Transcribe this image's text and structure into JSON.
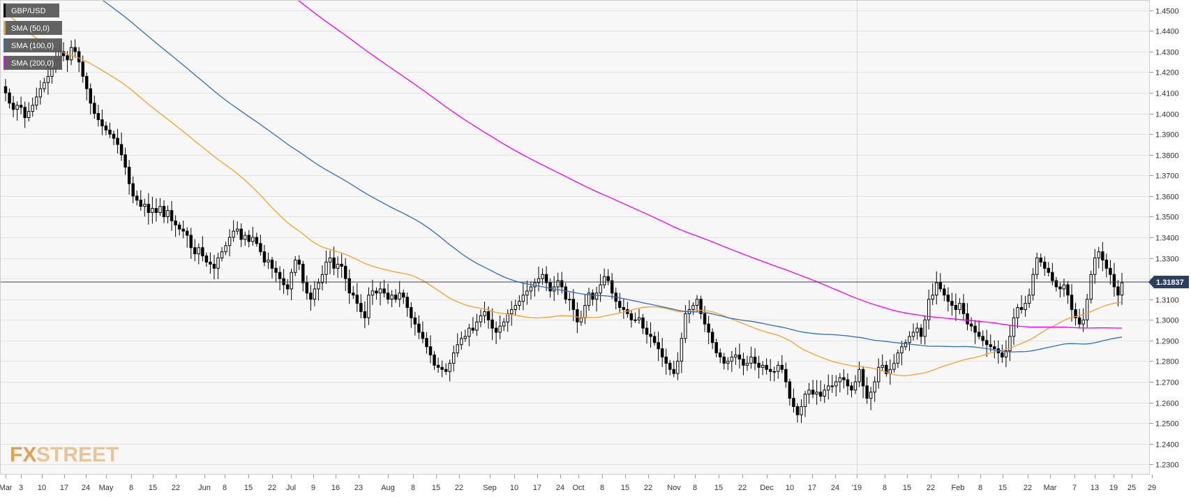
{
  "chart_data": {
    "type": "candlestick",
    "instrument": "GBP/USD",
    "ylim": [
      1.225,
      1.455
    ],
    "yticks": [
      "1.2300",
      "1.2400",
      "1.2500",
      "1.2600",
      "1.2700",
      "1.2800",
      "1.2900",
      "1.3000",
      "1.3100",
      "1.3200",
      "1.3300",
      "1.3400",
      "1.3500",
      "1.3600",
      "1.3700",
      "1.3800",
      "1.3900",
      "1.4000",
      "1.4100",
      "1.4200",
      "1.4300",
      "1.4400",
      "1.4500"
    ],
    "xticks": [
      "Mar",
      "3",
      "10",
      "17",
      "24",
      "May",
      "8",
      "15",
      "22",
      "Jun",
      "8",
      "15",
      "22",
      "Jul",
      "9",
      "16",
      "23",
      "Aug",
      "8",
      "15",
      "22",
      "Sep",
      "10",
      "17",
      "24",
      "Oct",
      "8",
      "15",
      "22",
      "Nov",
      "8",
      "15",
      "22",
      "Dec",
      "10",
      "17",
      "24",
      "'19",
      "8",
      "15",
      "22",
      "Feb",
      "8",
      "15",
      "22",
      "Mar",
      "7",
      "13",
      "19",
      "25",
      "29"
    ],
    "last_price": 1.31837,
    "last_price_label": "1.31837",
    "grid": true,
    "legend_position": "top-left",
    "legend": [
      {
        "label": "GBP/USD",
        "color": "#000000"
      },
      {
        "label": "SMA (50,0)",
        "color": "#f5a030"
      },
      {
        "label": "SMA (100,0)",
        "color": "#2f6eba"
      },
      {
        "label": "SMA (200,0)",
        "color": "#ee00ee"
      }
    ],
    "close_series": [
      1.41,
      1.405,
      1.402,
      1.404,
      1.403,
      1.398,
      1.401,
      1.404,
      1.408,
      1.412,
      1.415,
      1.418,
      1.422,
      1.426,
      1.43,
      1.428,
      1.426,
      1.432,
      1.43,
      1.425,
      1.418,
      1.412,
      1.405,
      1.4,
      1.397,
      1.394,
      1.392,
      1.39,
      1.388,
      1.385,
      1.38,
      1.374,
      1.366,
      1.36,
      1.358,
      1.355,
      1.356,
      1.352,
      1.354,
      1.352,
      1.355,
      1.35,
      1.353,
      1.348,
      1.346,
      1.344,
      1.343,
      1.341,
      1.335,
      1.332,
      1.335,
      1.331,
      1.328,
      1.327,
      1.325,
      1.33,
      1.333,
      1.336,
      1.34,
      1.343,
      1.344,
      1.339,
      1.341,
      1.338,
      1.34,
      1.337,
      1.333,
      1.328,
      1.329,
      1.325,
      1.323,
      1.32,
      1.317,
      1.315,
      1.323,
      1.329,
      1.327,
      1.318,
      1.313,
      1.31,
      1.315,
      1.318,
      1.322,
      1.328,
      1.33,
      1.325,
      1.327,
      1.326,
      1.32,
      1.313,
      1.312,
      1.308,
      1.304,
      1.301,
      1.312,
      1.314,
      1.313,
      1.315,
      1.313,
      1.31,
      1.312,
      1.31,
      1.313,
      1.311,
      1.306,
      1.301,
      1.298,
      1.294,
      1.291,
      1.287,
      1.283,
      1.278,
      1.277,
      1.276,
      1.275,
      1.279,
      1.284,
      1.288,
      1.291,
      1.292,
      1.296,
      1.295,
      1.299,
      1.302,
      1.304,
      1.3,
      1.296,
      1.294,
      1.297,
      1.299,
      1.303,
      1.305,
      1.307,
      1.309,
      1.312,
      1.314,
      1.316,
      1.318,
      1.32,
      1.322,
      1.318,
      1.314,
      1.316,
      1.319,
      1.316,
      1.31,
      1.31,
      1.305,
      1.299,
      1.301,
      1.307,
      1.313,
      1.31,
      1.313,
      1.317,
      1.321,
      1.319,
      1.313,
      1.309,
      1.306,
      1.305,
      1.303,
      1.3,
      1.3,
      1.301,
      1.296,
      1.293,
      1.292,
      1.289,
      1.286,
      1.282,
      1.279,
      1.276,
      1.274,
      1.28,
      1.291,
      1.303,
      1.305,
      1.307,
      1.31,
      1.303,
      1.298,
      1.294,
      1.289,
      1.284,
      1.282,
      1.279,
      1.28,
      1.282,
      1.283,
      1.281,
      1.278,
      1.279,
      1.282,
      1.279,
      1.277,
      1.278,
      1.276,
      1.275,
      1.275,
      1.278,
      1.276,
      1.27,
      1.262,
      1.258,
      1.254,
      1.258,
      1.264,
      1.266,
      1.264,
      1.265,
      1.263,
      1.266,
      1.268,
      1.268,
      1.27,
      1.272,
      1.271,
      1.268,
      1.266,
      1.27,
      1.276,
      1.268,
      1.262,
      1.265,
      1.27,
      1.277,
      1.278,
      1.274,
      1.276,
      1.279,
      1.284,
      1.287,
      1.289,
      1.292,
      1.294,
      1.296,
      1.292,
      1.3,
      1.31,
      1.312,
      1.318,
      1.315,
      1.312,
      1.309,
      1.307,
      1.305,
      1.308,
      1.303,
      1.298,
      1.297,
      1.294,
      1.292,
      1.29,
      1.288,
      1.287,
      1.286,
      1.284,
      1.282,
      1.285,
      1.292,
      1.301,
      1.306,
      1.305,
      1.308,
      1.312,
      1.322,
      1.33,
      1.328,
      1.325,
      1.323,
      1.319,
      1.316,
      1.315,
      1.317,
      1.312,
      1.305,
      1.301,
      1.298,
      1.3,
      1.31,
      1.322,
      1.33,
      1.333,
      1.329,
      1.325,
      1.322,
      1.316,
      1.312,
      1.318
    ]
  },
  "watermark": {
    "part1": "FX",
    "part2": "STREET"
  }
}
